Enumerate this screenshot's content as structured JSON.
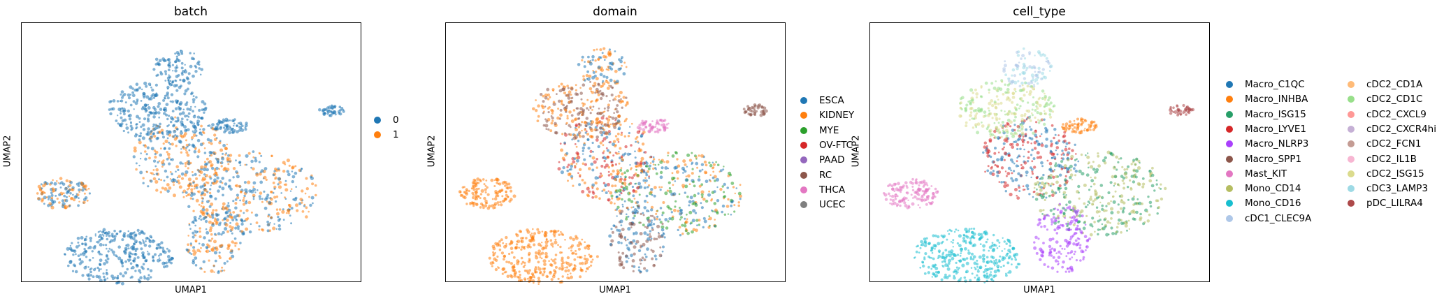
{
  "chart_data": [
    {
      "type": "scatter",
      "title": "batch",
      "xlabel": "UMAP1",
      "ylabel": "UMAP2",
      "legend_title": "",
      "legend": [
        {
          "label": "0",
          "color": "#1f77b4"
        },
        {
          "label": "1",
          "color": "#ff7f0e"
        }
      ]
    },
    {
      "type": "scatter",
      "title": "domain",
      "xlabel": "UMAP1",
      "ylabel": "UMAP2",
      "legend": [
        {
          "label": "ESCA",
          "color": "#1f77b4"
        },
        {
          "label": "KIDNEY",
          "color": "#ff7f0e"
        },
        {
          "label": "MYE",
          "color": "#2ca02c"
        },
        {
          "label": "OV-FTC",
          "color": "#d62728"
        },
        {
          "label": "PAAD",
          "color": "#9467bd"
        },
        {
          "label": "RC",
          "color": "#8c564b"
        },
        {
          "label": "THCA",
          "color": "#e377c2"
        },
        {
          "label": "UCEC",
          "color": "#7f7f7f"
        }
      ]
    },
    {
      "type": "scatter",
      "title": "cell_type",
      "xlabel": "UMAP1",
      "ylabel": "UMAP2",
      "legend": [
        {
          "label": "Macro_C1QC",
          "color": "#1f77b4"
        },
        {
          "label": "Macro_INHBA",
          "color": "#ff7f0e"
        },
        {
          "label": "Macro_ISG15",
          "color": "#279e68"
        },
        {
          "label": "Macro_LYVE1",
          "color": "#d62728"
        },
        {
          "label": "Macro_NLRP3",
          "color": "#aa40fc"
        },
        {
          "label": "Macro_SPP1",
          "color": "#8c564b"
        },
        {
          "label": "Mast_KIT",
          "color": "#e377c2"
        },
        {
          "label": "Mono_CD14",
          "color": "#b5bd61"
        },
        {
          "label": "Mono_CD16",
          "color": "#17becf"
        },
        {
          "label": "cDC1_CLEC9A",
          "color": "#aec7e8"
        },
        {
          "label": "cDC2_CD1A",
          "color": "#ffbb78"
        },
        {
          "label": "cDC2_CD1C",
          "color": "#98df8a"
        },
        {
          "label": "cDC2_CXCL9",
          "color": "#ff9896"
        },
        {
          "label": "cDC2_CXCR4hi",
          "color": "#c5b0d5"
        },
        {
          "label": "cDC2_FCN1",
          "color": "#c49c94"
        },
        {
          "label": "cDC2_IL1B",
          "color": "#f7b6d2"
        },
        {
          "label": "cDC2_ISG15",
          "color": "#dbdb8d"
        },
        {
          "label": "cDC3_LAMP3",
          "color": "#9edae5"
        },
        {
          "label": "pDC_LILRA4",
          "color": "#ad494a"
        }
      ]
    }
  ]
}
